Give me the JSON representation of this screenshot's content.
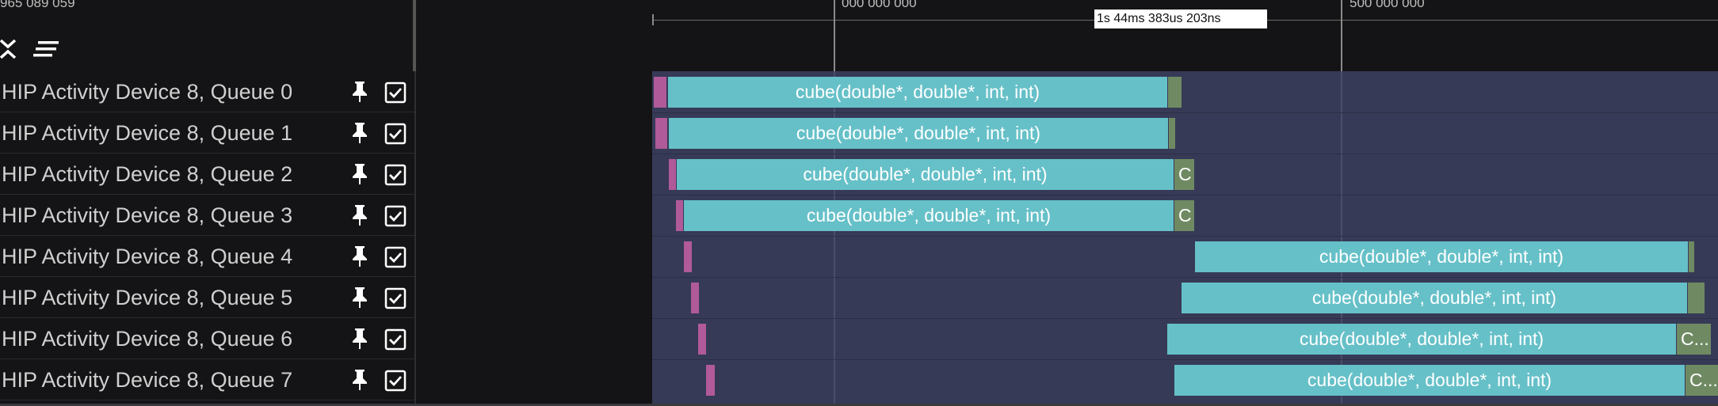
{
  "header": {
    "left_time": "965 089 059",
    "ruler_labels": [
      "000 000 000",
      "500 000 000"
    ],
    "cursor_time": "1s 44ms 383us 203ns",
    "collapse_icon": "collapse-icon",
    "sort_icon": "sort-lines-icon"
  },
  "tracks": [
    {
      "label": "HIP Activity Device 8, Queue 0",
      "pin_icon": "pin-icon",
      "checked": true
    },
    {
      "label": "HIP Activity Device 8, Queue 1",
      "pin_icon": "pin-icon",
      "checked": true
    },
    {
      "label": "HIP Activity Device 8, Queue 2",
      "pin_icon": "pin-icon",
      "checked": true
    },
    {
      "label": "HIP Activity Device 8, Queue 3",
      "pin_icon": "pin-icon",
      "checked": true
    },
    {
      "label": "HIP Activity Device 8, Queue 4",
      "pin_icon": "pin-icon",
      "checked": true
    },
    {
      "label": "HIP Activity Device 8, Queue 5",
      "pin_icon": "pin-icon",
      "checked": true
    },
    {
      "label": "HIP Activity Device 8, Queue 6",
      "pin_icon": "pin-icon",
      "checked": true
    },
    {
      "label": "HIP Activity Device 8, Queue 7",
      "pin_icon": "pin-icon",
      "checked": true
    }
  ],
  "events": {
    "kernel_name": "cube(double*, double*, int, int)",
    "copy_short": "C",
    "copy_truncated": "C..."
  },
  "colors": {
    "background": "#141416",
    "track_area": "#363a56",
    "kernel": "#66c0c8",
    "marker": "#b05a9a",
    "copy": "#6f8a62",
    "text": "#d0d0d0"
  }
}
